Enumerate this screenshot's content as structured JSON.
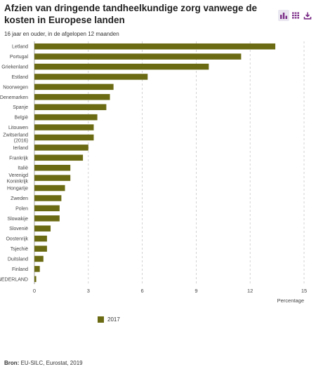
{
  "title": "Afzien van dringende tandheelkundige zorg vanwege de kosten in Europese landen",
  "subtitle": "16 jaar en ouder, in de afgelopen 12 maanden",
  "toolbar": {
    "icons": [
      "bar-chart-icon",
      "table-icon",
      "download-icon"
    ],
    "accent": "#7b2d87"
  },
  "legend": {
    "label": "2017",
    "color": "#6b6b14"
  },
  "source": {
    "label": "Bron:",
    "text": "EU-SILC, Eurostat, 2019"
  },
  "chart_data": {
    "type": "bar",
    "orientation": "horizontal",
    "xlabel": "Percentage",
    "xlim": [
      0,
      15
    ],
    "xticks": [
      0,
      3,
      6,
      9,
      12,
      15
    ],
    "grid": "vertical dashed",
    "legend_position": "bottom",
    "series": [
      {
        "name": "2017",
        "color": "#6b6b14"
      }
    ],
    "categories": [
      [
        "Letland"
      ],
      [
        "Portugal"
      ],
      [
        "Griekenland"
      ],
      [
        "Estland"
      ],
      [
        "Noorwegen"
      ],
      [
        "Denemarken"
      ],
      [
        "Spanje"
      ],
      [
        "België"
      ],
      [
        "Litouwen"
      ],
      [
        "Zwitserland",
        "(2016)"
      ],
      [
        "Ierland"
      ],
      [
        "Frankrijk"
      ],
      [
        "Italië"
      ],
      [
        "Verenigd",
        "Koninkrijk"
      ],
      [
        "Hongarije"
      ],
      [
        "Zweden"
      ],
      [
        "Polen"
      ],
      [
        "Slowakije"
      ],
      [
        "Slovenië"
      ],
      [
        "Oostenrijk"
      ],
      [
        "Tsjechië"
      ],
      [
        "Duitsland"
      ],
      [
        "Finland"
      ],
      [
        "NEDERLAND"
      ]
    ],
    "values": [
      13.4,
      11.5,
      9.7,
      6.3,
      4.4,
      4.2,
      4.0,
      3.5,
      3.3,
      3.3,
      3.0,
      2.7,
      2.0,
      2.0,
      1.7,
      1.5,
      1.4,
      1.4,
      0.9,
      0.7,
      0.7,
      0.5,
      0.3,
      0.1
    ]
  }
}
